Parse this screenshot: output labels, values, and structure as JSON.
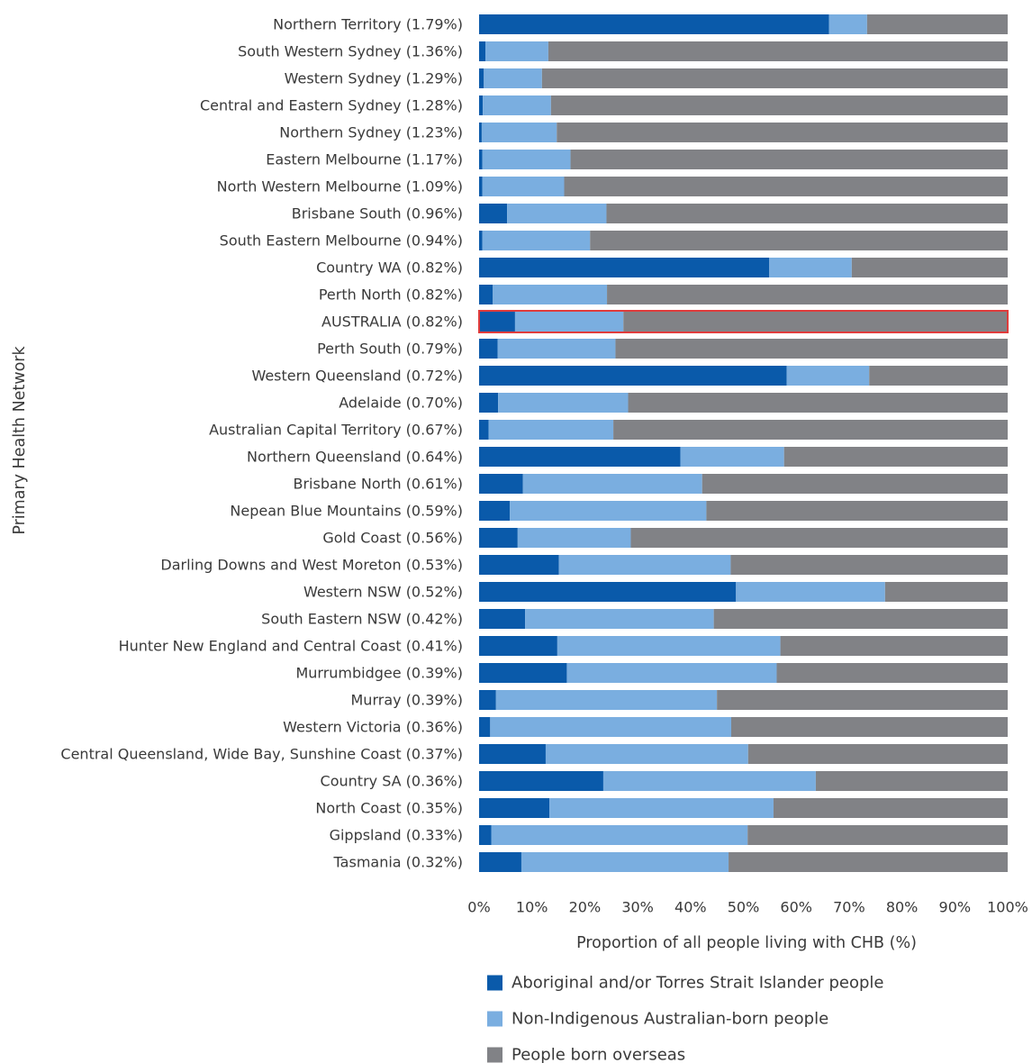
{
  "chart_data": {
    "type": "bar",
    "orientation": "horizontal",
    "stacked": "percent",
    "xlabel": "Proportion of all people living with CHB (%)",
    "ylabel": "Primary Health Network",
    "xlim": [
      0,
      100
    ],
    "xticks": [
      "0%",
      "10%",
      "20%",
      "30%",
      "40%",
      "50%",
      "60%",
      "70%",
      "80%",
      "90%",
      "100%"
    ],
    "grid": false,
    "legend_position": "bottom",
    "highlight_category": "AUSTRALIA (0.82%)",
    "highlight_color": "#e03c3c",
    "categories": [
      "Northern Territory (1.79%)",
      "South Western Sydney (1.36%)",
      "Western Sydney (1.29%)",
      "Central and Eastern Sydney (1.28%)",
      "Northern Sydney (1.23%)",
      "Eastern Melbourne (1.17%)",
      "North Western Melbourne (1.09%)",
      "Brisbane South (0.96%)",
      "South Eastern Melbourne (0.94%)",
      "Country WA (0.82%)",
      "Perth North (0.82%)",
      "AUSTRALIA (0.82%)",
      "Perth South (0.79%)",
      "Western Queensland (0.72%)",
      "Adelaide (0.70%)",
      "Australian Capital Territory (0.67%)",
      "Northern Queensland (0.64%)",
      "Brisbane North (0.61%)",
      "Nepean Blue Mountains (0.59%)",
      "Gold Coast (0.56%)",
      "Darling Downs and West Moreton (0.53%)",
      "Western NSW (0.52%)",
      "South Eastern NSW (0.42%)",
      "Hunter New England and Central Coast (0.41%)",
      "Murrumbidgee (0.39%)",
      "Murray (0.39%)",
      "Western Victoria (0.36%)",
      "Central Queensland, Wide Bay, Sunshine Coast (0.37%)",
      "Country SA (0.36%)",
      "North Coast (0.35%)",
      "Gippsland (0.33%)",
      "Tasmania (0.32%)"
    ],
    "series": [
      {
        "name": "Aboriginal and/or Torres Strait Islander people",
        "color": "#0a5aaa",
        "values": [
          66.2,
          1.2,
          0.9,
          0.7,
          0.5,
          0.6,
          0.6,
          5.3,
          0.6,
          54.9,
          2.6,
          6.8,
          3.5,
          58.2,
          3.6,
          1.8,
          38.1,
          8.3,
          5.8,
          7.3,
          15.1,
          48.6,
          8.7,
          14.8,
          16.6,
          3.2,
          2.1,
          12.6,
          23.5,
          13.3,
          2.3,
          8.0
        ]
      },
      {
        "name": "Non-Indigenous Australian-born people",
        "color": "#7aaee0",
        "values": [
          7.2,
          11.9,
          11.0,
          12.9,
          14.2,
          16.7,
          15.5,
          18.8,
          20.4,
          15.6,
          21.6,
          20.5,
          22.3,
          15.6,
          24.6,
          23.6,
          19.6,
          33.9,
          37.2,
          21.4,
          32.5,
          28.2,
          35.7,
          42.2,
          39.7,
          41.8,
          45.6,
          38.3,
          40.2,
          42.4,
          48.5,
          39.2
        ]
      },
      {
        "name": "People born overseas",
        "color": "#818286",
        "values": [
          26.6,
          86.9,
          88.1,
          86.4,
          85.3,
          82.7,
          83.9,
          75.9,
          79.0,
          29.5,
          75.8,
          72.7,
          74.2,
          26.2,
          71.8,
          74.6,
          42.3,
          57.8,
          57.0,
          71.3,
          52.4,
          23.2,
          55.6,
          43.0,
          43.7,
          55.0,
          52.3,
          49.1,
          36.3,
          44.3,
          49.2,
          52.8
        ]
      }
    ]
  }
}
